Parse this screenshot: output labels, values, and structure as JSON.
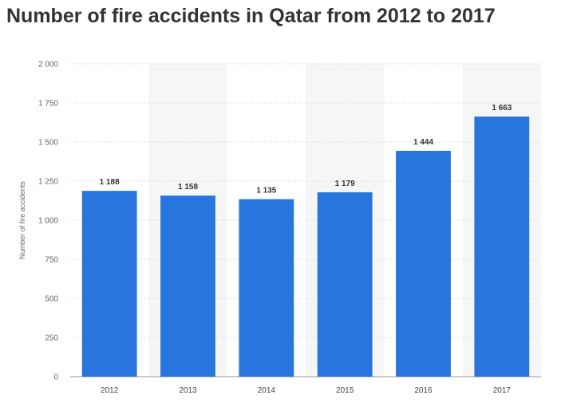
{
  "title": "Number of fire accidents in Qatar from 2012 to 2017",
  "chart_data": {
    "type": "bar",
    "title": "Number of fire accidents in Qatar from 2012 to 2017",
    "xlabel": "",
    "ylabel": "Number of fire accidents",
    "categories": [
      "2012",
      "2013",
      "2014",
      "2015",
      "2016",
      "2017"
    ],
    "values": [
      1188,
      1158,
      1135,
      1179,
      1444,
      1663
    ],
    "value_labels": [
      "1 188",
      "1 158",
      "1 135",
      "1 179",
      "1 444",
      "1 663"
    ],
    "ylim": [
      0,
      2000
    ],
    "yticks": [
      0,
      250,
      500,
      750,
      1000,
      1250,
      1500,
      1750,
      2000
    ],
    "ytick_labels": [
      "0",
      "250",
      "500",
      "750",
      "1 000",
      "1 250",
      "1 500",
      "1 750",
      "2 000"
    ],
    "grid": true,
    "legend": "none",
    "colors": {
      "bar": "#2876dd",
      "band": "#f6f6f6",
      "grid": "#cfcfcf"
    }
  }
}
